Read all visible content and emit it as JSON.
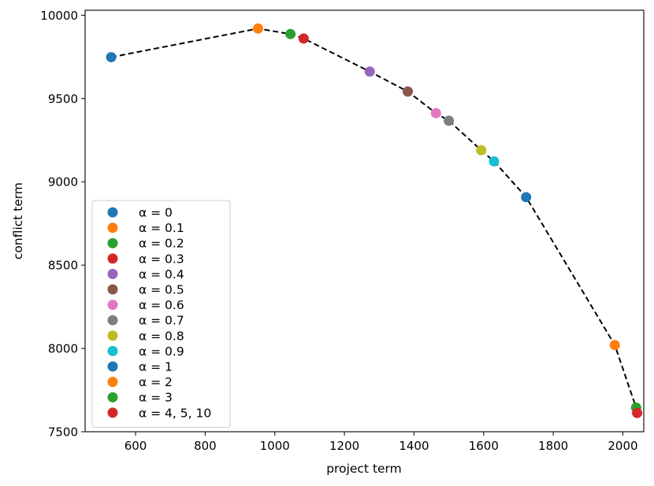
{
  "chart_data": {
    "type": "scatter",
    "xlabel": "project term",
    "ylabel": "conflict term",
    "xlim": [
      455,
      2060
    ],
    "ylim": [
      7500,
      10030
    ],
    "x_ticks": [
      600,
      800,
      1000,
      1200,
      1400,
      1600,
      1800,
      2000
    ],
    "y_ticks": [
      7500,
      8000,
      8500,
      9000,
      9500,
      10000
    ],
    "grid": false,
    "legend_position": "lower-left",
    "line": {
      "style": "dashed",
      "color": "#000000",
      "x": [
        530,
        952,
        1045,
        1083,
        1273,
        1382,
        1463,
        1500,
        1593,
        1630,
        1722,
        1977,
        2038,
        2041
      ],
      "y": [
        9748,
        9920,
        9887,
        9860,
        9662,
        9542,
        9412,
        9367,
        9190,
        9123,
        8908,
        8020,
        7645,
        7613
      ]
    },
    "series": [
      {
        "name": "α = 0",
        "color": "#1f77b4",
        "x": [
          530
        ],
        "y": [
          9748
        ]
      },
      {
        "name": "α = 0.1",
        "color": "#ff7f0e",
        "x": [
          952
        ],
        "y": [
          9920
        ]
      },
      {
        "name": "α = 0.2",
        "color": "#2ca02c",
        "x": [
          1045
        ],
        "y": [
          9887
        ]
      },
      {
        "name": "α = 0.3",
        "color": "#d62728",
        "x": [
          1083
        ],
        "y": [
          9860
        ]
      },
      {
        "name": "α = 0.4",
        "color": "#9467bd",
        "x": [
          1273
        ],
        "y": [
          9662
        ]
      },
      {
        "name": "α = 0.5",
        "color": "#8c564b",
        "x": [
          1382
        ],
        "y": [
          9542
        ]
      },
      {
        "name": "α = 0.6",
        "color": "#e377c2",
        "x": [
          1463
        ],
        "y": [
          9412
        ]
      },
      {
        "name": "α = 0.7",
        "color": "#7f7f7f",
        "x": [
          1500
        ],
        "y": [
          9367
        ]
      },
      {
        "name": "α = 0.8",
        "color": "#bcbd22",
        "x": [
          1593
        ],
        "y": [
          9190
        ]
      },
      {
        "name": "α = 0.9",
        "color": "#17becf",
        "x": [
          1630
        ],
        "y": [
          9123
        ]
      },
      {
        "name": "α = 1",
        "color": "#1f77b4",
        "x": [
          1722
        ],
        "y": [
          8908
        ]
      },
      {
        "name": "α = 2",
        "color": "#ff7f0e",
        "x": [
          1977
        ],
        "y": [
          8020
        ]
      },
      {
        "name": "α = 3",
        "color": "#2ca02c",
        "x": [
          2038
        ],
        "y": [
          7645
        ]
      },
      {
        "name": "α = 4, 5, 10",
        "color": "#d62728",
        "x": [
          2041
        ],
        "y": [
          7613
        ]
      }
    ]
  }
}
